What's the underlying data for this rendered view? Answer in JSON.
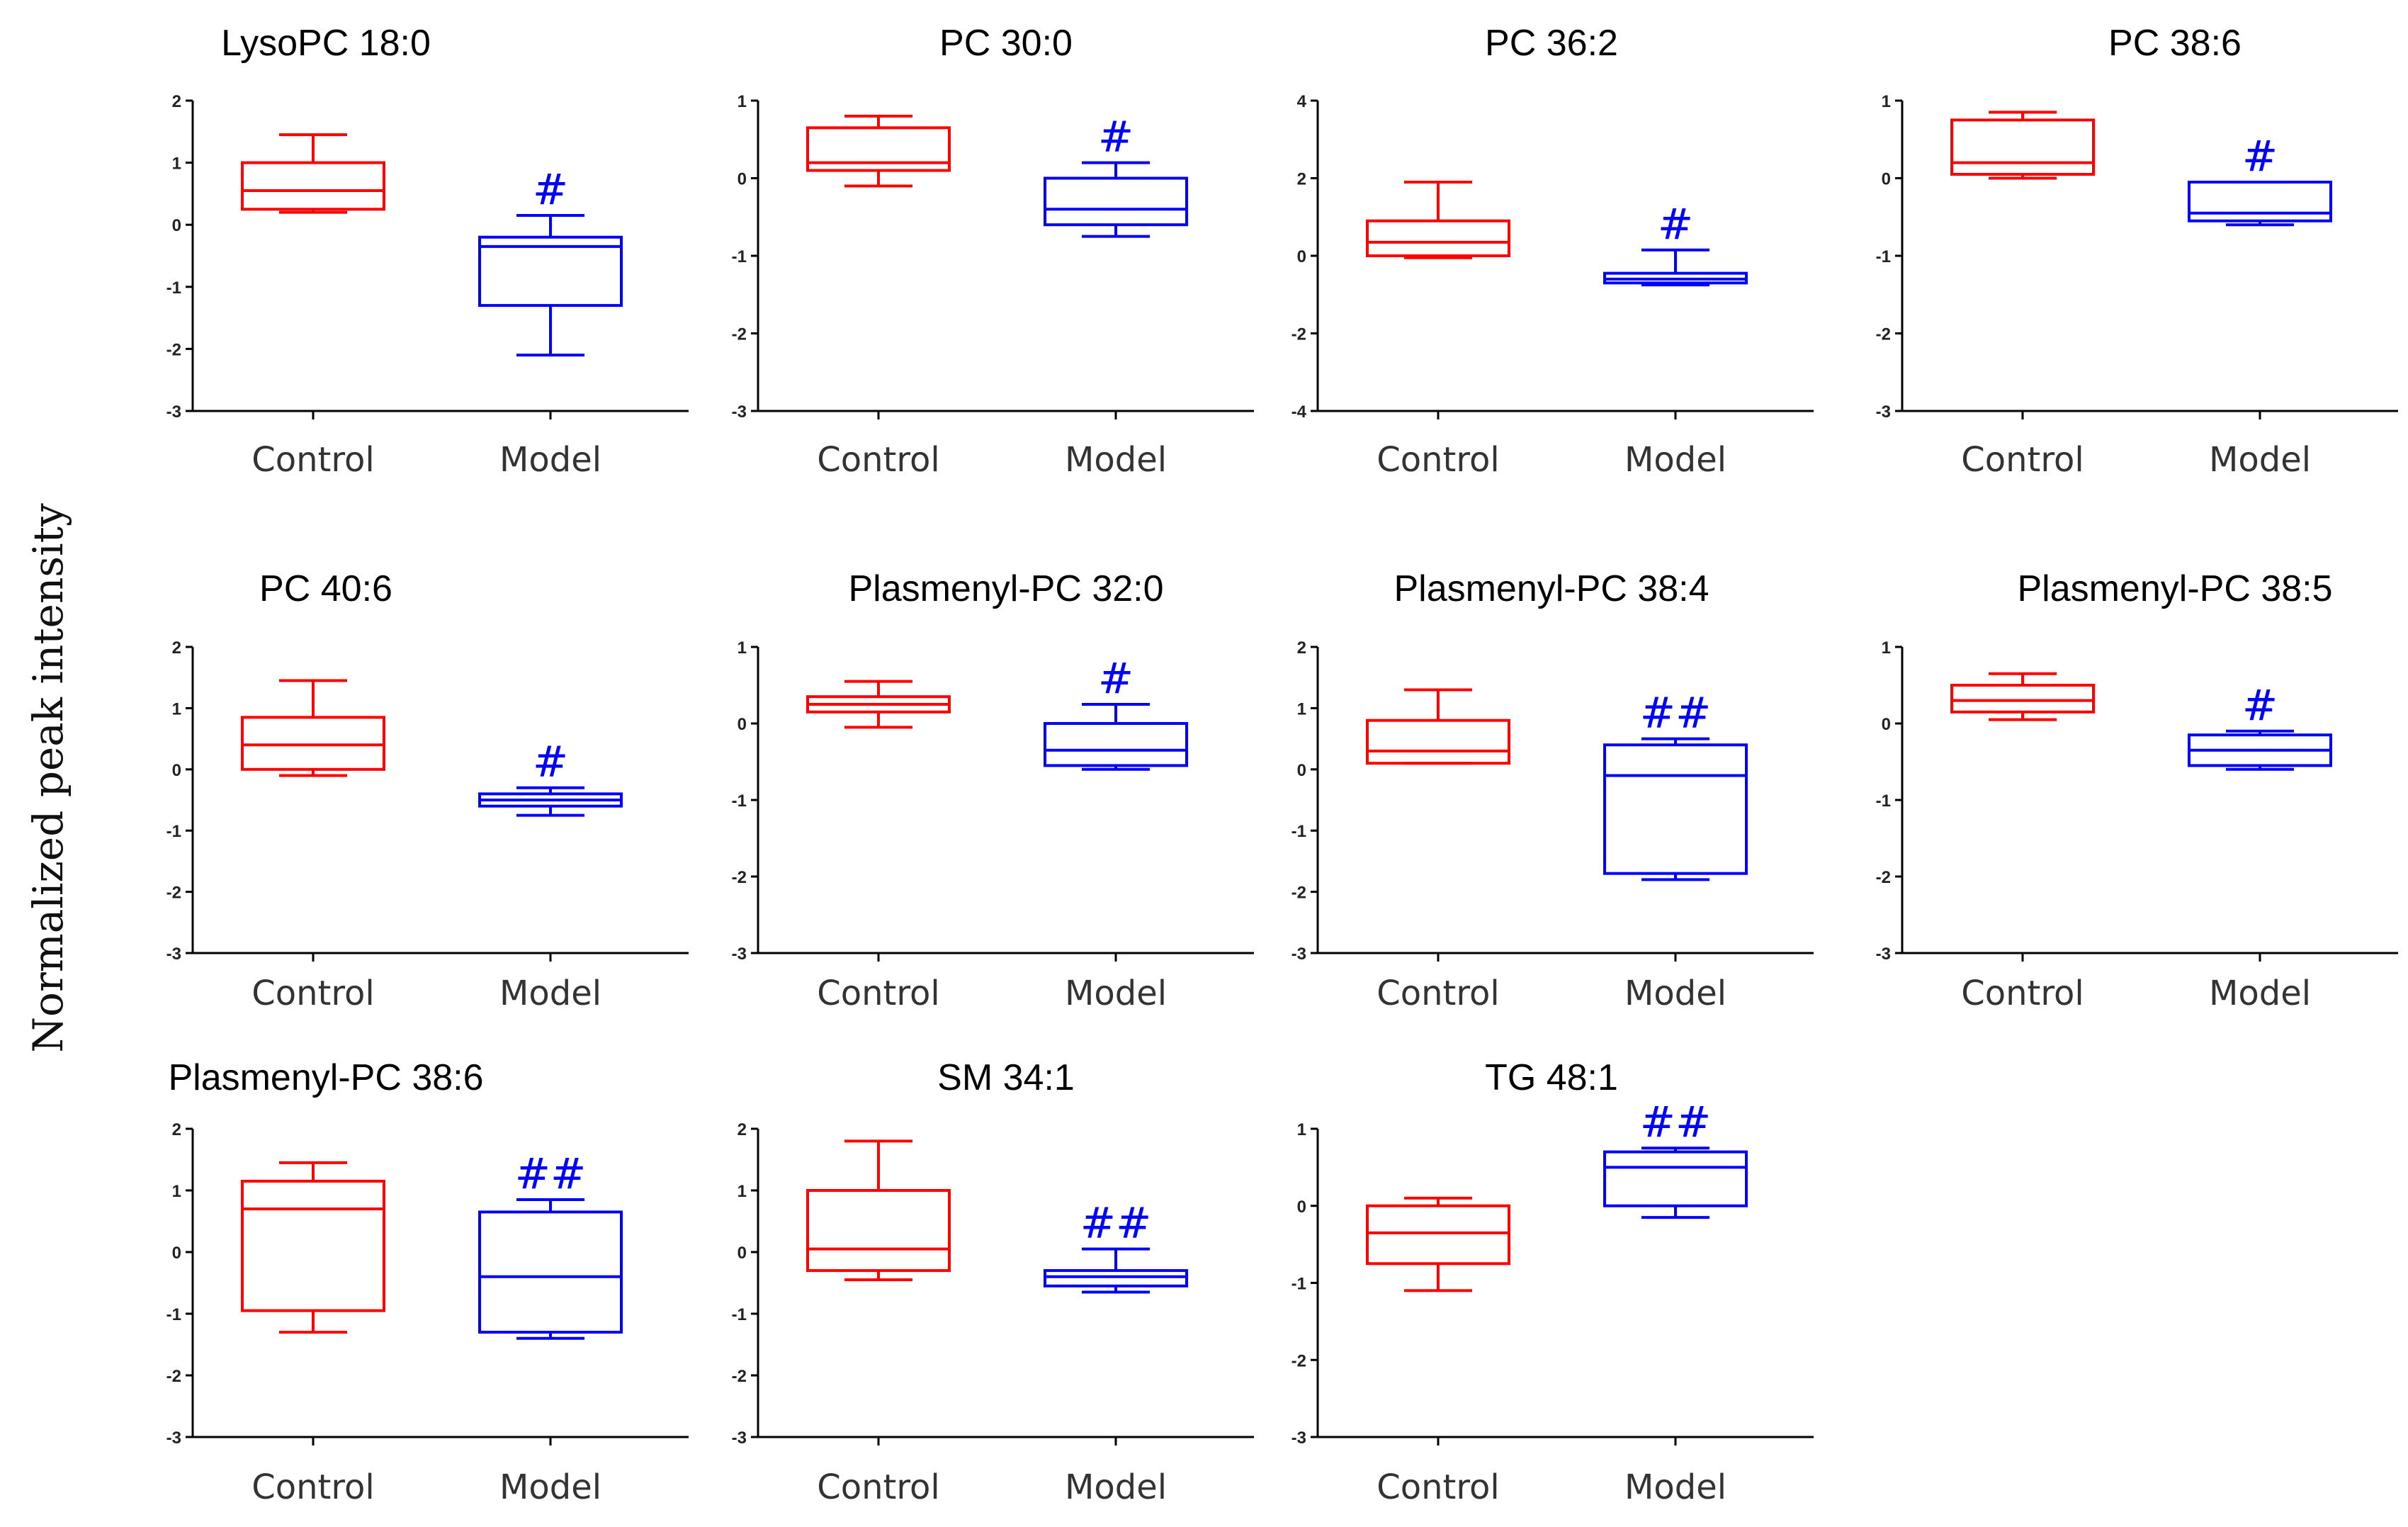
{
  "y_axis_label": "Normalized peak intensity",
  "colors": {
    "control": "#ff0000",
    "model": "#0000ff",
    "axis": "#000000"
  },
  "chart_data": [
    {
      "type": "box",
      "title": "LysoPC 18:0",
      "ylim": [
        -3,
        2
      ],
      "yticks": [
        "2",
        "1",
        "0",
        "-1",
        "-2",
        "-3"
      ],
      "categories": [
        "Control",
        "Model"
      ],
      "boxes": [
        {
          "min": 0.2,
          "q1": 0.25,
          "median": 0.55,
          "q3": 1.0,
          "max": 1.45
        },
        {
          "min": -2.1,
          "q1": -1.3,
          "median": -0.35,
          "q3": -0.2,
          "max": 0.15,
          "sig": "#"
        }
      ]
    },
    {
      "type": "box",
      "title": "PC 30:0",
      "ylim": [
        -3,
        1
      ],
      "yticks": [
        "1",
        "0",
        "-1",
        "-2",
        "-3"
      ],
      "categories": [
        "Control",
        "Model"
      ],
      "boxes": [
        {
          "min": -0.1,
          "q1": 0.1,
          "median": 0.2,
          "q3": 0.65,
          "max": 0.8
        },
        {
          "min": -0.75,
          "q1": -0.6,
          "median": -0.4,
          "q3": 0.0,
          "max": 0.2,
          "sig": "#"
        }
      ]
    },
    {
      "type": "box",
      "title": "PC 36:2",
      "ylim": [
        -4,
        4
      ],
      "yticks": [
        "4",
        "2",
        "0",
        "-2",
        "-4"
      ],
      "categories": [
        "Control",
        "Model"
      ],
      "boxes": [
        {
          "min": -0.05,
          "q1": 0.0,
          "median": 0.35,
          "q3": 0.9,
          "max": 1.9
        },
        {
          "min": -0.75,
          "q1": -0.7,
          "median": -0.6,
          "q3": -0.45,
          "max": 0.15,
          "sig": "#"
        }
      ]
    },
    {
      "type": "box",
      "title": "PC 38:6",
      "ylim": [
        -3,
        1
      ],
      "yticks": [
        "1",
        "0",
        "-1",
        "-2",
        "-3"
      ],
      "categories": [
        "Control",
        "Model"
      ],
      "boxes": [
        {
          "min": 0.0,
          "q1": 0.05,
          "median": 0.2,
          "q3": 0.75,
          "max": 0.85
        },
        {
          "min": -0.6,
          "q1": -0.55,
          "median": -0.45,
          "q3": -0.05,
          "max": -0.05,
          "sig": "#"
        }
      ]
    },
    {
      "type": "box",
      "title": "PC 40:6",
      "ylim": [
        -3,
        2
      ],
      "yticks": [
        "2",
        "1",
        "0",
        "-1",
        "-2",
        "-3"
      ],
      "categories": [
        "Control",
        "Model"
      ],
      "boxes": [
        {
          "min": -0.1,
          "q1": 0.0,
          "median": 0.4,
          "q3": 0.85,
          "max": 1.45
        },
        {
          "min": -0.75,
          "q1": -0.6,
          "median": -0.5,
          "q3": -0.4,
          "max": -0.3,
          "sig": "#"
        }
      ]
    },
    {
      "type": "box",
      "title": "Plasmenyl-PC 32:0",
      "ylim": [
        -3,
        1
      ],
      "yticks": [
        "1",
        "0",
        "-1",
        "-2",
        "-3"
      ],
      "categories": [
        "Control",
        "Model"
      ],
      "boxes": [
        {
          "min": -0.05,
          "q1": 0.15,
          "median": 0.25,
          "q3": 0.35,
          "max": 0.55
        },
        {
          "min": -0.6,
          "q1": -0.55,
          "median": -0.35,
          "q3": 0.0,
          "max": 0.25,
          "sig": "#"
        }
      ]
    },
    {
      "type": "box",
      "title": "Plasmenyl-PC 38:4",
      "ylim": [
        -3,
        2
      ],
      "yticks": [
        "2",
        "1",
        "0",
        "-1",
        "-2",
        "-3"
      ],
      "categories": [
        "Control",
        "Model"
      ],
      "boxes": [
        {
          "min": 0.1,
          "q1": 0.1,
          "median": 0.3,
          "q3": 0.8,
          "max": 1.3
        },
        {
          "min": -1.8,
          "q1": -1.7,
          "median": -0.1,
          "q3": 0.4,
          "max": 0.5,
          "sig": "##"
        }
      ]
    },
    {
      "type": "box",
      "title": "Plasmenyl-PC 38:5",
      "ylim": [
        -3,
        1
      ],
      "yticks": [
        "1",
        "0",
        "-1",
        "-2",
        "-3"
      ],
      "categories": [
        "Control",
        "Model"
      ],
      "boxes": [
        {
          "min": 0.05,
          "q1": 0.15,
          "median": 0.3,
          "q3": 0.5,
          "max": 0.65
        },
        {
          "min": -0.6,
          "q1": -0.55,
          "median": -0.35,
          "q3": -0.15,
          "max": -0.1,
          "sig": "#"
        }
      ]
    },
    {
      "type": "box",
      "title": "Plasmenyl-PC 38:6",
      "ylim": [
        -3,
        2
      ],
      "yticks": [
        "2",
        "1",
        "0",
        "-1",
        "-2",
        "-3"
      ],
      "categories": [
        "Control",
        "Model"
      ],
      "boxes": [
        {
          "min": -1.3,
          "q1": -0.95,
          "median": 0.7,
          "q3": 1.15,
          "max": 1.45
        },
        {
          "min": -1.4,
          "q1": -1.3,
          "median": -0.4,
          "q3": 0.65,
          "max": 0.85,
          "sig": "##"
        }
      ]
    },
    {
      "type": "box",
      "title": "SM 34:1",
      "ylim": [
        -3,
        2
      ],
      "yticks": [
        "2",
        "1",
        "0",
        "-1",
        "-2",
        "-3"
      ],
      "categories": [
        "Control",
        "Model"
      ],
      "boxes": [
        {
          "min": -0.45,
          "q1": -0.3,
          "median": 0.05,
          "q3": 1.0,
          "max": 1.8
        },
        {
          "min": -0.65,
          "q1": -0.55,
          "median": -0.4,
          "q3": -0.3,
          "max": 0.05,
          "sig": "##"
        }
      ]
    },
    {
      "type": "box",
      "title": "TG 48:1",
      "ylim": [
        -3,
        1
      ],
      "yticks": [
        "1",
        "0",
        "-1",
        "-2",
        "-3"
      ],
      "categories": [
        "Control",
        "Model"
      ],
      "boxes": [
        {
          "min": -1.1,
          "q1": -0.75,
          "median": -0.35,
          "q3": 0.0,
          "max": 0.1
        },
        {
          "min": -0.15,
          "q1": 0.0,
          "median": 0.5,
          "q3": 0.7,
          "max": 0.75,
          "sig": "##"
        }
      ]
    }
  ]
}
